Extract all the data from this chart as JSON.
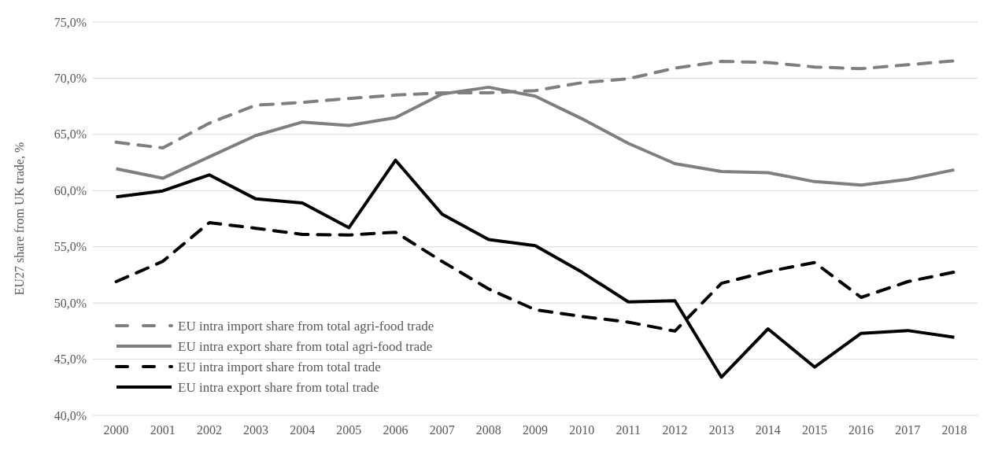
{
  "chart_data": {
    "type": "line",
    "ylabel": "EU27 share from UK trade, %",
    "categories": [
      "2000",
      "2001",
      "2002",
      "2003",
      "2004",
      "2005",
      "2006",
      "2007",
      "2008",
      "2009",
      "2010",
      "2011",
      "2012",
      "2013",
      "2014",
      "2015",
      "2016",
      "2017",
      "2018"
    ],
    "ylim": [
      40,
      75
    ],
    "yticks": [
      {
        "value": 40,
        "label": "40,0%"
      },
      {
        "value": 45,
        "label": "45,0%"
      },
      {
        "value": 50,
        "label": "50,0%"
      },
      {
        "value": 55,
        "label": "55,0%"
      },
      {
        "value": 60,
        "label": "60,0%"
      },
      {
        "value": 65,
        "label": "65,0%"
      },
      {
        "value": 70,
        "label": "70,0%"
      },
      {
        "value": 75,
        "label": "75,0%"
      }
    ],
    "grid": "y",
    "legend": "bottom left",
    "marker": "none",
    "series": [
      {
        "name": "EU intra import share from total agri-food trade",
        "color": "#7f7f7f",
        "line_style": "dashed",
        "values": [
          64.3,
          63.8,
          66.0,
          67.6,
          67.85,
          68.2,
          68.5,
          68.7,
          68.7,
          68.9,
          69.6,
          69.95,
          70.9,
          71.5,
          71.4,
          71.0,
          70.85,
          71.2,
          71.55
        ]
      },
      {
        "name": "EU intra export share from total agri-food trade",
        "color": "#7f7f7f",
        "line_style": "solid",
        "values": [
          61.95,
          61.1,
          63.0,
          64.9,
          66.1,
          65.8,
          66.5,
          68.6,
          69.2,
          68.4,
          66.4,
          64.2,
          62.4,
          61.7,
          61.6,
          60.8,
          60.5,
          61.0,
          61.85
        ]
      },
      {
        "name": "EU intra import share from total trade",
        "color": "#000000",
        "line_style": "dashed",
        "values": [
          51.9,
          53.7,
          57.15,
          56.65,
          56.1,
          56.05,
          56.3,
          53.7,
          51.25,
          49.4,
          48.8,
          48.3,
          47.5,
          51.75,
          52.8,
          53.6,
          50.5,
          51.9,
          52.75
        ]
      },
      {
        "name": "EU intra export share from total trade",
        "color": "#000000",
        "line_style": "solid",
        "values": [
          59.45,
          59.97,
          61.4,
          59.26,
          58.9,
          56.7,
          62.7,
          57.9,
          55.65,
          55.1,
          52.75,
          50.1,
          50.2,
          43.4,
          47.7,
          44.3,
          47.3,
          47.55,
          46.95
        ]
      }
    ]
  }
}
